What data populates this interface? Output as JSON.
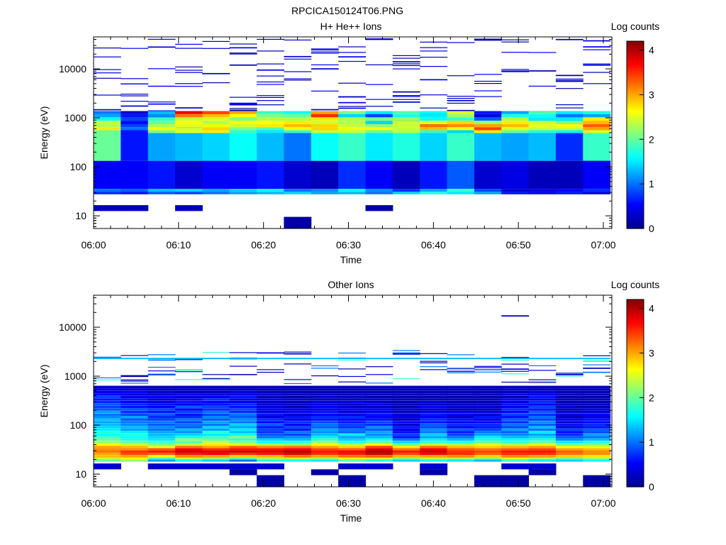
{
  "figure_title": "RPCICA150124T06.PNG",
  "colormap": [
    "#00008f",
    "#0000ff",
    "#0080ff",
    "#00ffff",
    "#80ff80",
    "#ffff00",
    "#ff8000",
    "#ff0000",
    "#800000"
  ],
  "chart_data": [
    {
      "type": "heatmap",
      "title": "H+ He++ Ions",
      "xlabel": "Time",
      "ylabel": "Energy (eV)",
      "colorbar_label": "Log counts",
      "x_ticks": [
        "06:00",
        "06:10",
        "06:20",
        "06:30",
        "06:40",
        "06:50",
        "07:00"
      ],
      "y_scale": "log",
      "y_ticks": [
        {
          "value": 10,
          "label": "10"
        },
        {
          "value": 100,
          "label": "100"
        },
        {
          "value": 1000,
          "label": "1000"
        },
        {
          "value": 10000,
          "label": "10000"
        }
      ],
      "ylim": [
        5.5,
        45000
      ],
      "xlim_minutes": [
        0,
        61
      ],
      "color_range": [
        0,
        4.2
      ],
      "colorbar_ticks": [
        {
          "value": 0,
          "label": "0"
        },
        {
          "value": 1,
          "label": "1"
        },
        {
          "value": 2,
          "label": "2"
        },
        {
          "value": 3,
          "label": "3"
        },
        {
          "value": 4,
          "label": "4"
        }
      ],
      "time_bins": 19,
      "bin_minutes": 3.2,
      "band_energies_eV": [
        1300,
        1100,
        950,
        800,
        690,
        600,
        520,
        460,
        38,
        33,
        29
      ],
      "band_levels": [
        [
          1.0,
          1.2,
          1.6,
          2.4,
          2.3,
          2.7,
          2.0,
          2.0,
          0.5,
          1.0,
          0.7
        ],
        [
          0.3,
          0.6,
          0.8,
          0.5,
          0.8,
          1.0,
          0.6,
          0.6,
          0.5,
          0.9,
          0.6
        ],
        [
          1.3,
          1.1,
          1.8,
          2.0,
          2.3,
          2.6,
          2.1,
          1.2,
          0.6,
          1.3,
          0.9
        ],
        [
          3.8,
          3.2,
          2.4,
          2.6,
          2.5,
          2.4,
          2.5,
          1.3,
          0.3,
          1.4,
          0.8
        ],
        [
          3.4,
          2.9,
          2.5,
          2.3,
          2.6,
          2.8,
          2.7,
          1.4,
          0.5,
          1.2,
          1.0
        ],
        [
          3.0,
          2.6,
          2.1,
          2.6,
          2.4,
          2.1,
          1.8,
          1.6,
          0.5,
          1.4,
          1.2
        ],
        [
          1.8,
          2.1,
          2.3,
          2.6,
          2.7,
          1.9,
          1.5,
          1.3,
          0.6,
          1.6,
          1.3
        ],
        [
          1.6,
          2.0,
          2.3,
          2.7,
          2.9,
          2.6,
          1.8,
          1.0,
          0.3,
          1.0,
          1.4
        ],
        [
          3.0,
          3.5,
          2.7,
          2.4,
          2.8,
          2.8,
          2.4,
          1.6,
          0.2,
          1.1,
          1.2
        ],
        [
          2.1,
          1.4,
          2.3,
          2.3,
          2.4,
          2.6,
          2.4,
          1.8,
          0.7,
          1.6,
          1.3
        ],
        [
          1.5,
          0.8,
          2.1,
          1.4,
          2.2,
          2.6,
          2.0,
          1.5,
          0.5,
          1.1,
          1.0
        ],
        [
          1.9,
          1.7,
          2.2,
          2.4,
          2.4,
          2.4,
          2.3,
          1.7,
          0.2,
          0.7,
          1.4
        ],
        [
          1.6,
          1.5,
          1.6,
          2.5,
          3.2,
          2.9,
          1.8,
          1.4,
          0.6,
          1.2,
          1.7
        ],
        [
          2.5,
          2.2,
          1.8,
          2.8,
          3.1,
          2.6,
          1.4,
          1.8,
          0.9,
          1.8,
          1.5
        ],
        [
          0.6,
          0.4,
          0.9,
          2.2,
          3.0,
          3.4,
          2.7,
          1.3,
          0.3,
          0.8,
          1.2
        ],
        [
          1.2,
          1.7,
          2.3,
          2.7,
          2.9,
          2.5,
          2.0,
          1.2,
          0.4,
          0.3,
          0.6
        ],
        [
          1.9,
          1.6,
          1.5,
          2.4,
          2.5,
          2.4,
          1.7,
          1.3,
          0.2,
          0.4,
          0.5
        ],
        [
          1.5,
          1.0,
          1.5,
          2.1,
          2.6,
          2.4,
          1.6,
          0.7,
          0.2,
          0.5,
          0.6
        ],
        [
          1.7,
          1.2,
          2.7,
          2.9,
          3.3,
          3.0,
          2.5,
          1.8,
          0.5,
          0.7,
          0.4
        ]
      ],
      "sparse_counts": {
        "min_eV": 100,
        "max_eV": 40000,
        "lines_per_bin": 22,
        "levels": [
          0.1,
          0.3,
          0.5
        ]
      },
      "low_energy_patches": [
        {
          "bins": [
            0,
            1,
            3
          ],
          "eV": [
            12.5,
            16.5
          ],
          "level": 0.2
        },
        {
          "bins": [
            7
          ],
          "eV": [
            5.5,
            9.5
          ],
          "level": 0.1
        },
        {
          "bins": [
            10
          ],
          "eV": [
            12.5,
            16.5
          ],
          "level": 0.1
        },
        {
          "bins": [
            3
          ],
          "eV": [
            45,
            65
          ],
          "level": 0.3
        }
      ]
    },
    {
      "type": "heatmap",
      "title": "Other Ions",
      "xlabel": "Time",
      "ylabel": "Energy (eV)",
      "colorbar_label": "Log counts",
      "x_ticks": [
        "06:00",
        "06:10",
        "06:20",
        "06:30",
        "06:40",
        "06:50",
        "07:00"
      ],
      "y_scale": "log",
      "y_ticks": [
        {
          "value": 10,
          "label": "10"
        },
        {
          "value": 100,
          "label": "100"
        },
        {
          "value": 1000,
          "label": "1000"
        },
        {
          "value": 10000,
          "label": "10000"
        }
      ],
      "ylim": [
        5.5,
        45000
      ],
      "xlim_minutes": [
        0,
        61
      ],
      "color_range": [
        0,
        4.2
      ],
      "colorbar_ticks": [
        {
          "value": 0,
          "label": "0"
        },
        {
          "value": 1,
          "label": "1"
        },
        {
          "value": 2,
          "label": "2"
        },
        {
          "value": 3,
          "label": "3"
        },
        {
          "value": 4,
          "label": "4"
        }
      ],
      "time_bins": 19,
      "bin_minutes": 3.2,
      "band_energies_eV": [
        19,
        21,
        23,
        26,
        29,
        32,
        36,
        40,
        45,
        51,
        57,
        64,
        72,
        81,
        91,
        102,
        115,
        130,
        146,
        164,
        185,
        208,
        234,
        263,
        296,
        333,
        375,
        422,
        475,
        535,
        602
      ],
      "band_levels": [
        [
          2.0,
          2.4,
          2.9,
          3.0,
          3.2,
          3.1,
          3.0,
          2.6,
          2.2,
          2.0,
          1.8,
          1.6,
          1.7,
          1.5,
          1.4,
          1.3,
          1.2,
          1.3,
          1.1,
          1.0,
          1.2,
          0.9,
          0.8,
          0.9,
          0.7,
          0.6,
          0.8,
          0.5,
          0.4,
          0.4,
          0.3
        ],
        [
          2.2,
          2.6,
          3.0,
          3.4,
          3.5,
          3.1,
          2.9,
          2.4,
          2.0,
          1.7,
          1.6,
          1.7,
          1.5,
          1.2,
          1.3,
          1.1,
          1.0,
          0.9,
          1.2,
          0.8,
          0.7,
          0.9,
          0.6,
          0.7,
          0.5,
          0.6,
          0.4,
          0.3,
          0.5,
          0.3,
          0.2
        ],
        [
          1.2,
          1.8,
          2.6,
          3.3,
          3.6,
          3.3,
          2.5,
          2.1,
          1.8,
          1.5,
          1.4,
          1.3,
          1.2,
          1.0,
          1.1,
          0.9,
          1.0,
          0.8,
          0.7,
          0.9,
          0.6,
          0.8,
          0.5,
          0.6,
          0.4,
          0.3,
          0.5,
          0.2,
          0.3,
          0.2,
          0.2
        ],
        [
          1.6,
          2.4,
          3.1,
          3.6,
          3.9,
          3.7,
          3.2,
          2.4,
          1.9,
          2.2,
          1.6,
          1.4,
          1.1,
          1.3,
          0.9,
          1.0,
          0.8,
          1.0,
          0.7,
          0.6,
          0.8,
          0.5,
          0.9,
          0.4,
          0.6,
          0.5,
          0.3,
          0.4,
          0.2,
          0.3,
          0.2
        ],
        [
          1.4,
          2.2,
          3.0,
          3.7,
          3.8,
          3.5,
          3.0,
          2.7,
          2.4,
          2.0,
          1.8,
          1.5,
          1.7,
          1.2,
          1.4,
          1.0,
          1.2,
          0.9,
          1.1,
          0.8,
          1.0,
          0.7,
          0.8,
          0.6,
          0.5,
          0.7,
          0.4,
          0.3,
          0.2,
          0.3,
          0.2
        ],
        [
          1.0,
          1.9,
          2.8,
          3.5,
          3.9,
          3.6,
          3.3,
          2.5,
          2.1,
          1.8,
          2.1,
          1.6,
          1.3,
          1.5,
          1.2,
          1.4,
          1.0,
          1.1,
          0.9,
          1.0,
          0.7,
          0.8,
          0.6,
          0.7,
          0.5,
          0.4,
          0.6,
          0.3,
          0.4,
          0.2,
          0.2
        ],
        [
          1.7,
          2.3,
          2.9,
          3.6,
          3.8,
          3.6,
          3.1,
          2.3,
          1.6,
          1.4,
          1.0,
          0.9,
          0.7,
          0.8,
          0.6,
          0.9,
          0.5,
          0.7,
          0.4,
          0.6,
          0.3,
          0.5,
          0.4,
          0.3,
          0.2,
          0.4,
          0.2,
          0.3,
          0.2,
          0.2,
          0.2
        ],
        [
          1.6,
          2.4,
          3.2,
          3.8,
          4.0,
          3.7,
          3.2,
          2.2,
          1.7,
          1.3,
          1.1,
          0.8,
          1.0,
          0.6,
          0.8,
          0.5,
          0.7,
          0.4,
          0.6,
          0.3,
          0.5,
          0.4,
          0.2,
          0.3,
          0.2,
          0.3,
          0.2,
          0.2,
          0.2,
          0.2,
          0.2
        ],
        [
          1.5,
          2.2,
          3.0,
          3.5,
          3.6,
          3.4,
          3.0,
          2.6,
          2.2,
          1.8,
          1.5,
          1.3,
          1.1,
          1.2,
          0.9,
          1.0,
          0.8,
          0.6,
          0.7,
          0.5,
          0.6,
          0.4,
          0.5,
          0.3,
          0.4,
          0.2,
          0.3,
          0.2,
          0.2,
          0.2,
          0.2
        ],
        [
          1.9,
          2.6,
          3.2,
          3.6,
          3.7,
          3.3,
          2.8,
          2.3,
          1.7,
          1.4,
          1.2,
          1.5,
          0.9,
          1.0,
          0.7,
          0.8,
          0.6,
          0.5,
          0.7,
          0.4,
          0.3,
          0.5,
          0.3,
          0.2,
          0.4,
          0.2,
          0.3,
          0.2,
          0.2,
          0.2,
          0.2
        ],
        [
          1.7,
          2.5,
          3.3,
          3.9,
          4.0,
          3.8,
          3.4,
          2.6,
          2.0,
          1.6,
          1.3,
          1.1,
          1.2,
          0.9,
          1.1,
          0.7,
          0.8,
          0.6,
          0.5,
          0.6,
          0.4,
          0.5,
          0.3,
          0.4,
          0.2,
          0.3,
          0.2,
          0.2,
          0.2,
          0.2,
          0.2
        ],
        [
          1.4,
          2.1,
          2.9,
          3.4,
          3.6,
          3.2,
          2.7,
          2.0,
          1.4,
          1.0,
          0.6,
          0.8,
          0.5,
          0.4,
          0.6,
          0.3,
          0.5,
          0.2,
          0.4,
          0.3,
          0.2,
          0.3,
          0.2,
          0.2,
          0.2,
          0.2,
          0.2,
          0.2,
          0.2,
          0.2,
          0.2
        ],
        [
          1.6,
          2.4,
          3.0,
          3.7,
          3.9,
          3.7,
          3.2,
          2.4,
          1.8,
          1.5,
          1.2,
          1.4,
          1.0,
          1.1,
          0.8,
          0.9,
          0.6,
          0.7,
          0.5,
          0.6,
          0.4,
          0.3,
          0.5,
          0.2,
          0.3,
          0.2,
          0.2,
          0.2,
          0.2,
          0.2,
          0.2
        ],
        [
          1.5,
          2.3,
          3.1,
          3.5,
          3.5,
          3.3,
          2.9,
          2.3,
          1.7,
          1.3,
          1.0,
          0.8,
          0.6,
          0.9,
          0.5,
          0.7,
          0.4,
          0.6,
          0.3,
          0.5,
          0.4,
          0.2,
          0.3,
          0.2,
          0.2,
          0.2,
          0.2,
          0.2,
          0.2,
          0.2,
          0.2
        ],
        [
          1.3,
          2.1,
          2.8,
          3.3,
          3.4,
          3.2,
          2.8,
          2.5,
          2.0,
          1.7,
          1.5,
          1.2,
          1.0,
          0.8,
          0.6,
          0.7,
          0.5,
          0.4,
          0.6,
          0.3,
          0.4,
          0.2,
          0.3,
          0.2,
          0.2,
          0.2,
          0.2,
          0.2,
          0.2,
          0.2,
          0.2
        ],
        [
          1.8,
          2.5,
          3.1,
          3.5,
          3.6,
          3.3,
          2.9,
          2.3,
          1.8,
          1.6,
          1.3,
          1.1,
          0.9,
          1.2,
          0.8,
          1.0,
          0.7,
          0.9,
          0.6,
          0.8,
          0.5,
          0.7,
          0.4,
          0.6,
          0.3,
          0.5,
          0.2,
          0.4,
          0.2,
          0.3,
          0.2
        ],
        [
          1.5,
          2.3,
          3.0,
          3.5,
          3.6,
          3.4,
          3.0,
          2.5,
          2.0,
          1.7,
          1.4,
          1.2,
          1.5,
          1.0,
          1.3,
          0.9,
          1.1,
          0.8,
          1.0,
          0.7,
          0.9,
          0.6,
          0.8,
          0.5,
          0.7,
          0.4,
          0.6,
          0.3,
          0.4,
          0.2,
          0.2
        ],
        [
          1.4,
          2.0,
          2.8,
          3.2,
          3.3,
          3.0,
          2.6,
          2.0,
          1.5,
          1.1,
          0.9,
          0.7,
          0.5,
          0.8,
          0.4,
          0.6,
          0.3,
          0.5,
          0.2,
          0.4,
          0.3,
          0.2,
          0.3,
          0.2,
          0.2,
          0.2,
          0.2,
          0.2,
          0.2,
          0.2,
          0.2
        ],
        [
          1.6,
          2.2,
          2.7,
          3.1,
          3.1,
          2.9,
          2.5,
          2.1,
          1.7,
          1.3,
          1.0,
          1.2,
          0.8,
          0.9,
          0.6,
          0.7,
          0.5,
          0.6,
          0.4,
          0.5,
          0.3,
          0.4,
          0.2,
          0.3,
          0.2,
          0.2,
          0.2,
          0.2,
          0.2,
          0.2,
          0.2
        ]
      ],
      "sparse_counts": {
        "min_eV": 700,
        "max_eV": 3400,
        "lines_per_bin": 8,
        "levels": [
          0.1,
          0.4,
          1.0,
          1.8
        ]
      },
      "fixed_lines": [
        {
          "eV": 2300,
          "bins": [
            0,
            1,
            2,
            3,
            4,
            5,
            6,
            7,
            8,
            9,
            10,
            11,
            12,
            13,
            14,
            15,
            16,
            17,
            18
          ],
          "level": 1.3
        },
        {
          "eV": 17000,
          "bins": [
            15
          ],
          "level": 0.2
        }
      ],
      "low_energy_patches": [
        {
          "bins": [
            0,
            2,
            3,
            4,
            5,
            6,
            9,
            10,
            12,
            15,
            16
          ],
          "eV": [
            12.5,
            16.5
          ],
          "level": 0.3
        },
        {
          "bins": [
            6,
            9,
            14,
            15,
            18
          ],
          "eV": [
            5.5,
            9.5
          ],
          "level": 0.1
        },
        {
          "bins": [
            5,
            8,
            12,
            16
          ],
          "eV": [
            9.5,
            12.5
          ],
          "level": 0.1
        }
      ]
    }
  ]
}
